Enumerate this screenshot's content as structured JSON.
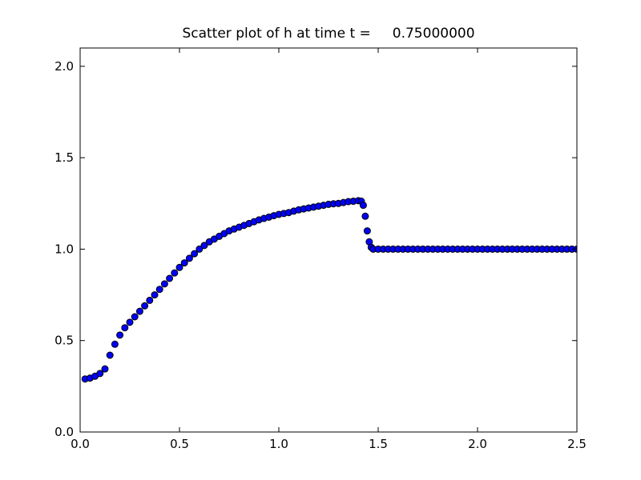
{
  "chart_data": {
    "type": "scatter",
    "title": "Scatter plot of h at time t =     0.75000000",
    "color": "#0000ff",
    "edgecolor": "#000000",
    "x": [
      0.025,
      0.05,
      0.075,
      0.1,
      0.125,
      0.15,
      0.175,
      0.2,
      0.225,
      0.25,
      0.275,
      0.3,
      0.325,
      0.35,
      0.375,
      0.4,
      0.425,
      0.45,
      0.475,
      0.5,
      0.525,
      0.55,
      0.575,
      0.6,
      0.625,
      0.65,
      0.675,
      0.7,
      0.725,
      0.75,
      0.775,
      0.8,
      0.825,
      0.85,
      0.875,
      0.9,
      0.925,
      0.95,
      0.975,
      1.0,
      1.025,
      1.05,
      1.075,
      1.1,
      1.125,
      1.15,
      1.175,
      1.2,
      1.225,
      1.25,
      1.275,
      1.3,
      1.325,
      1.35,
      1.375,
      1.4,
      1.415,
      1.425,
      1.435,
      1.445,
      1.455,
      1.465,
      1.475,
      1.5,
      1.525,
      1.55,
      1.575,
      1.6,
      1.625,
      1.65,
      1.675,
      1.7,
      1.725,
      1.75,
      1.775,
      1.8,
      1.825,
      1.85,
      1.875,
      1.9,
      1.925,
      1.95,
      1.975,
      2.0,
      2.025,
      2.05,
      2.075,
      2.1,
      2.125,
      2.15,
      2.175,
      2.2,
      2.225,
      2.25,
      2.275,
      2.3,
      2.325,
      2.35,
      2.375,
      2.4,
      2.425,
      2.45,
      2.475,
      2.5
    ],
    "values": [
      0.29,
      0.295,
      0.305,
      0.32,
      0.345,
      0.42,
      0.48,
      0.53,
      0.57,
      0.6,
      0.63,
      0.66,
      0.69,
      0.72,
      0.75,
      0.78,
      0.81,
      0.84,
      0.87,
      0.9,
      0.925,
      0.95,
      0.975,
      1.0,
      1.02,
      1.04,
      1.055,
      1.07,
      1.085,
      1.1,
      1.11,
      1.12,
      1.13,
      1.14,
      1.15,
      1.16,
      1.168,
      1.175,
      1.183,
      1.19,
      1.195,
      1.2,
      1.208,
      1.215,
      1.22,
      1.225,
      1.23,
      1.235,
      1.24,
      1.245,
      1.248,
      1.25,
      1.255,
      1.26,
      1.262,
      1.265,
      1.262,
      1.24,
      1.18,
      1.1,
      1.04,
      1.01,
      1.0,
      1.0,
      1.0,
      1.0,
      1.0,
      1.0,
      1.0,
      1.0,
      1.0,
      1.0,
      1.0,
      1.0,
      1.0,
      1.0,
      1.0,
      1.0,
      1.0,
      1.0,
      1.0,
      1.0,
      1.0,
      1.0,
      1.0,
      1.0,
      1.0,
      1.0,
      1.0,
      1.0,
      1.0,
      1.0,
      1.0,
      1.0,
      1.0,
      1.0,
      1.0,
      1.0,
      1.0,
      1.0,
      1.0,
      1.0,
      1.0,
      1.0
    ],
    "xlim": [
      0,
      2.5
    ],
    "ylim": [
      0,
      2.1
    ],
    "xticks": [
      {
        "value": 0,
        "label": "0.0"
      },
      0.5,
      {
        "value": 1,
        "label": "1.0"
      },
      1.5,
      {
        "value": 2,
        "label": "2.0"
      },
      2.5
    ],
    "yticks": [
      {
        "value": 0,
        "label": "0.0"
      },
      0.5,
      {
        "value": 1,
        "label": "1.0"
      },
      1.5,
      {
        "value": 2,
        "label": "2.0"
      }
    ]
  }
}
